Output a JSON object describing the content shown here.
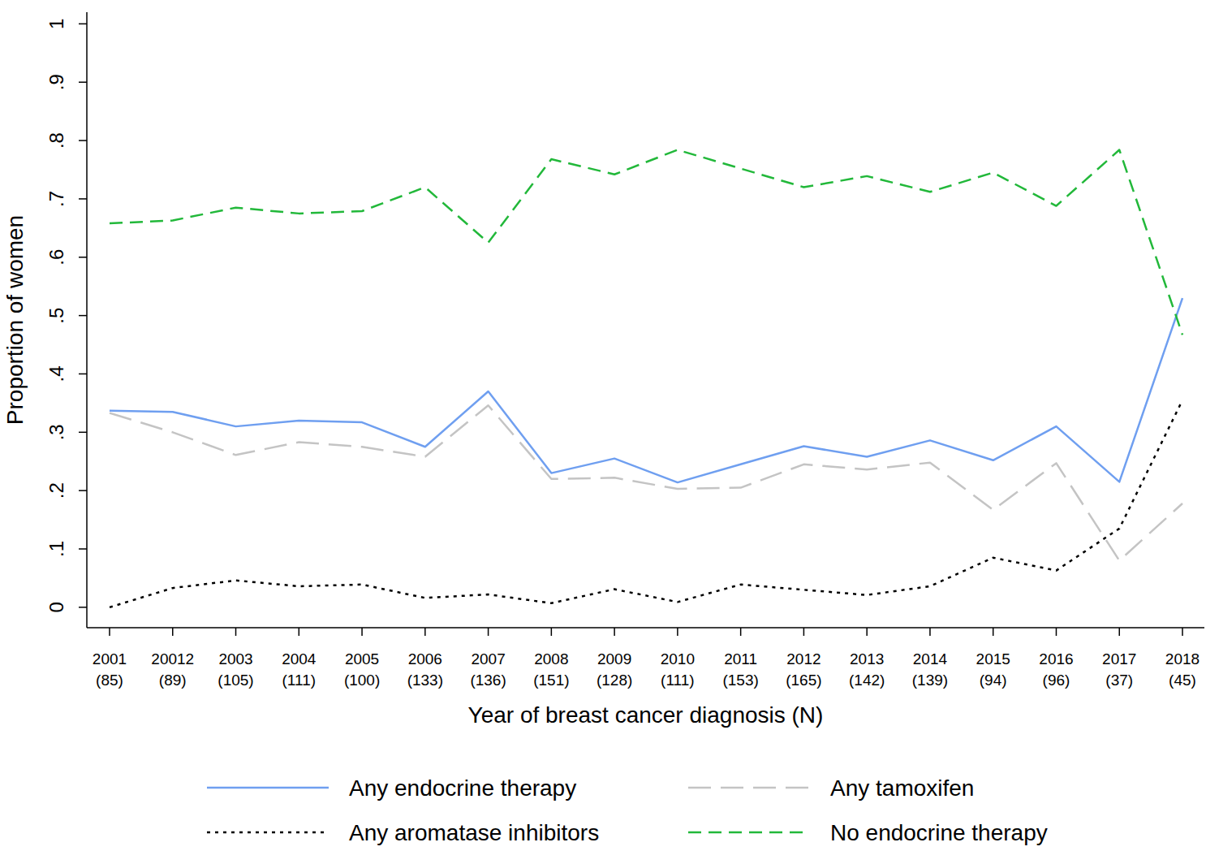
{
  "chart_data": {
    "type": "line",
    "x_label": "Year of breast cancer diagnosis (N)",
    "y_label": "Proportion of women",
    "categories": [
      "2001\n(85)",
      "20012\n(89)",
      "2003\n(105)",
      "2004\n(111)",
      "2005\n(100)",
      "2006\n(133)",
      "2007\n(136)",
      "2008\n(151)",
      "2009\n(128)",
      "2010\n(111)",
      "2011\n(153)",
      "2012\n(165)",
      "2013\n(142)",
      "2014\n(139)",
      "2015\n(94)",
      "2016\n(96)",
      "2017\n(37)",
      "2018\n(45)"
    ],
    "series": [
      {
        "name": "Any endocrine therapy",
        "color": "#6f9ff0",
        "line_style": "solid",
        "values": [
          0.337,
          0.335,
          0.31,
          0.32,
          0.317,
          0.275,
          0.37,
          0.23,
          0.255,
          0.214,
          0.245,
          0.276,
          0.258,
          0.286,
          0.252,
          0.31,
          0.215,
          0.53
        ]
      },
      {
        "name": "Any tamoxifen",
        "color": "#c4c4c4",
        "line_style": "longdash",
        "values": [
          0.333,
          0.3,
          0.261,
          0.283,
          0.275,
          0.258,
          0.346,
          0.22,
          0.222,
          0.203,
          0.205,
          0.245,
          0.236,
          0.248,
          0.167,
          0.247,
          0.08,
          0.178
        ]
      },
      {
        "name": "Any aromatase inhibitors",
        "color": "#000000",
        "line_style": "dot",
        "values": [
          0,
          0.033,
          0.046,
          0.036,
          0.039,
          0.016,
          0.022,
          0.007,
          0.031,
          0.009,
          0.039,
          0.03,
          0.021,
          0.036,
          0.085,
          0.063,
          0.135,
          0.355
        ]
      },
      {
        "name": "No endocrine therapy",
        "color": "#22b83a",
        "line_style": "dash",
        "values": [
          0.658,
          0.663,
          0.685,
          0.675,
          0.679,
          0.72,
          0.625,
          0.768,
          0.742,
          0.784,
          0.752,
          0.72,
          0.739,
          0.712,
          0.745,
          0.688,
          0.784,
          0.467
        ]
      }
    ],
    "ylim": [
      -0.035,
      1.02
    ],
    "yticks": [
      0,
      {
        "value": 0.1,
        "label": ".1"
      },
      {
        "value": 0.2,
        "label": ".2"
      },
      {
        "value": 0.3,
        "label": ".3"
      },
      {
        "value": 0.4,
        "label": ".4"
      },
      {
        "value": 0.5,
        "label": ".5"
      },
      {
        "value": 0.6,
        "label": ".6"
      },
      {
        "value": 0.7,
        "label": ".7"
      },
      {
        "value": 0.8,
        "label": ".8"
      },
      {
        "value": 0.9,
        "label": ".9"
      },
      1
    ],
    "grid": false,
    "legend": "bottom"
  }
}
